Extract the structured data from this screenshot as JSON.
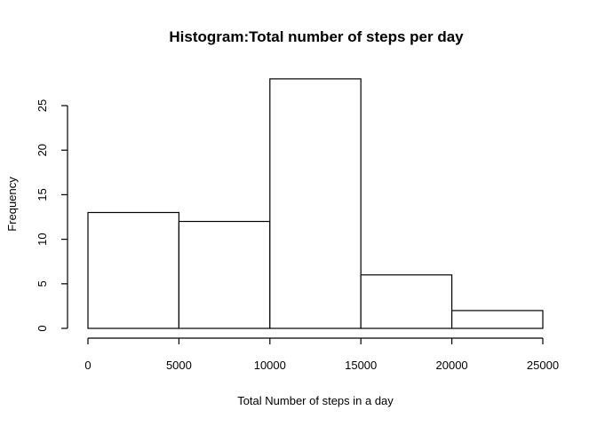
{
  "chart_data": {
    "type": "bar",
    "title": "Histogram:Total number of steps per day",
    "xlabel": "Total Number of steps in a day",
    "ylabel": "Frequency",
    "bins": [
      {
        "from": 0,
        "to": 5000,
        "count": 13
      },
      {
        "from": 5000,
        "to": 10000,
        "count": 12
      },
      {
        "from": 10000,
        "to": 15000,
        "count": 28
      },
      {
        "from": 15000,
        "to": 20000,
        "count": 6
      },
      {
        "from": 20000,
        "to": 25000,
        "count": 2
      }
    ],
    "xlim": [
      0,
      25000
    ],
    "ylim": [
      0,
      28
    ],
    "x_ticks": [
      0,
      5000,
      10000,
      15000,
      20000,
      25000
    ],
    "y_ticks": [
      0,
      5,
      10,
      15,
      20,
      25
    ],
    "grid": false,
    "bar_fill": "#ffffff",
    "bar_stroke": "#000000"
  }
}
